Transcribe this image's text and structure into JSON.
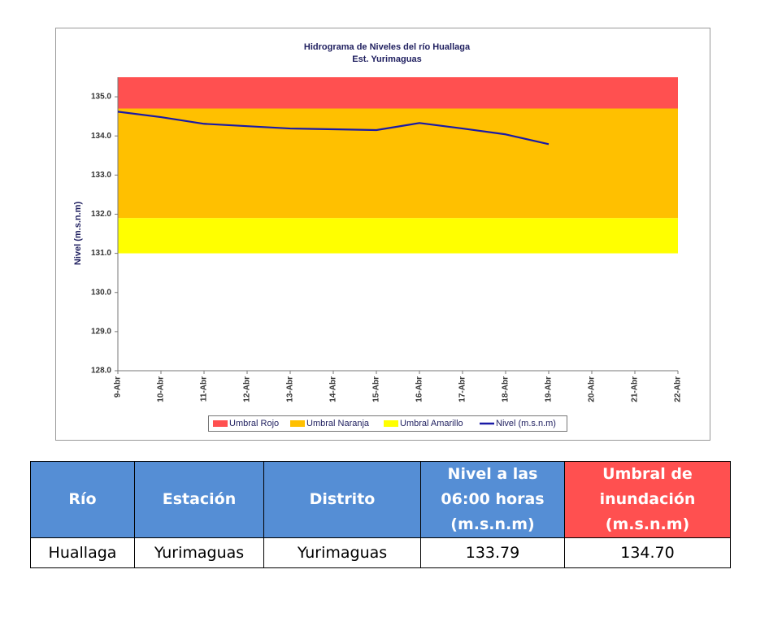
{
  "chart_data": {
    "type": "line",
    "title": "Hidrograma de Niveles del río Huallaga",
    "subtitle": "Est. Yurimaguas",
    "y_label": "Nivel (m.s.n.m)",
    "categories": [
      "9-Abr",
      "10-Abr",
      "11-Abr",
      "12-Abr",
      "13-Abr",
      "14-Abr",
      "15-Abr",
      "16-Abr",
      "17-Abr",
      "18-Abr",
      "19-Abr",
      "20-Abr",
      "21-Abr",
      "22-Abr"
    ],
    "bands": [
      {
        "name": "Umbral Rojo",
        "color": "#ff5050",
        "from": 134.7,
        "to": 135.5
      },
      {
        "name": "Umbral Naranja",
        "color": "#ffc000",
        "from": 131.9,
        "to": 134.7
      },
      {
        "name": "Umbral Amarillo",
        "color": "#ffff00",
        "from": 131.0,
        "to": 131.9
      }
    ],
    "series": [
      {
        "name": "Nivel (m.s.n.m)",
        "color": "#1a1aa6",
        "values": [
          134.62,
          134.48,
          134.31,
          134.25,
          134.19,
          134.17,
          134.15,
          134.33,
          134.19,
          134.04,
          133.79,
          null,
          null,
          null
        ]
      }
    ],
    "ylim": [
      128,
      135.5
    ],
    "yticks": [
      {
        "value": 128,
        "label": "128.0"
      },
      {
        "value": 129,
        "label": "129.0"
      },
      {
        "value": 130,
        "label": "130.0"
      },
      {
        "value": 131,
        "label": "131.0"
      },
      {
        "value": 132,
        "label": "132.0"
      },
      {
        "value": 133,
        "label": "133.0"
      },
      {
        "value": 134,
        "label": "134.0"
      },
      {
        "value": 135,
        "label": "135.0"
      }
    ],
    "legend": "bottom"
  },
  "table": {
    "headers": [
      "Río",
      "Estación",
      "Distrito",
      "Nivel a las 06:00 horas (m.s.n.m)",
      "Umbral de inundación (m.s.n.m)"
    ],
    "rows": [
      [
        "Huallaga",
        "Yurimaguas",
        "Yurimaguas",
        "133.79",
        "134.70"
      ]
    ]
  }
}
